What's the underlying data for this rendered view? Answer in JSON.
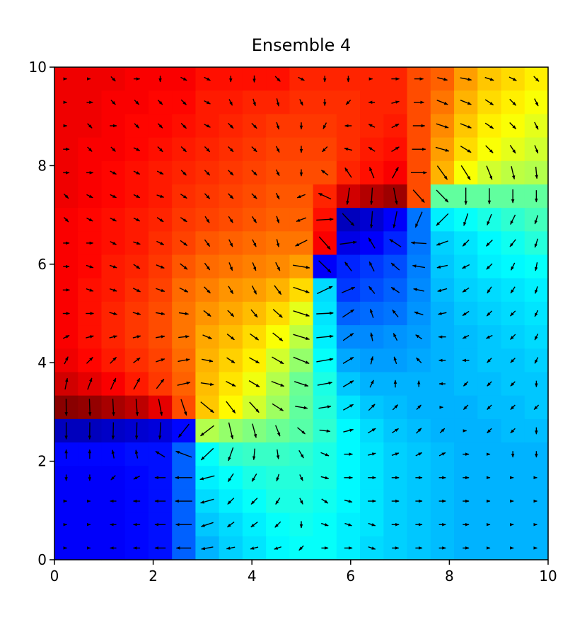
{
  "chart_data": {
    "type": "heatmap",
    "title": "Ensemble 4",
    "colormap": "jet",
    "quiver": true,
    "xlim": [
      0,
      10
    ],
    "ylim": [
      0,
      10
    ],
    "xticks": [
      0,
      2,
      4,
      6,
      8,
      10
    ],
    "yticks": [
      0,
      2,
      4,
      6,
      8,
      10
    ],
    "values": [
      [
        0.89,
        0.89,
        0.89,
        0.88,
        0.88,
        0.88,
        0.86,
        0.86,
        0.86,
        0.86,
        0.84,
        0.84,
        0.84,
        0.84,
        0.84,
        0.8,
        0.78,
        0.72,
        0.68,
        0.66,
        0.64
      ],
      [
        0.89,
        0.89,
        0.88,
        0.88,
        0.87,
        0.87,
        0.85,
        0.85,
        0.84,
        0.84,
        0.83,
        0.83,
        0.83,
        0.84,
        0.84,
        0.8,
        0.76,
        0.7,
        0.66,
        0.64,
        0.62
      ],
      [
        0.89,
        0.89,
        0.88,
        0.87,
        0.87,
        0.86,
        0.85,
        0.84,
        0.83,
        0.82,
        0.82,
        0.82,
        0.83,
        0.84,
        0.85,
        0.8,
        0.74,
        0.68,
        0.64,
        0.62,
        0.6
      ],
      [
        0.89,
        0.88,
        0.88,
        0.87,
        0.86,
        0.85,
        0.84,
        0.83,
        0.82,
        0.81,
        0.81,
        0.81,
        0.83,
        0.85,
        0.86,
        0.8,
        0.72,
        0.66,
        0.62,
        0.6,
        0.58
      ],
      [
        0.89,
        0.88,
        0.87,
        0.86,
        0.85,
        0.84,
        0.83,
        0.82,
        0.81,
        0.8,
        0.8,
        0.8,
        0.84,
        0.86,
        0.88,
        0.8,
        0.7,
        0.62,
        0.58,
        0.56,
        0.55
      ],
      [
        0.89,
        0.88,
        0.87,
        0.86,
        0.85,
        0.83,
        0.82,
        0.81,
        0.8,
        0.79,
        0.79,
        0.84,
        0.92,
        0.95,
        0.97,
        0.8,
        0.47,
        0.47,
        0.47,
        0.47,
        0.47
      ],
      [
        0.88,
        0.87,
        0.86,
        0.85,
        0.84,
        0.82,
        0.81,
        0.8,
        0.79,
        0.78,
        0.78,
        0.86,
        0.06,
        0.08,
        0.12,
        0.24,
        0.36,
        0.38,
        0.4,
        0.42,
        0.44
      ],
      [
        0.88,
        0.87,
        0.86,
        0.85,
        0.83,
        0.81,
        0.79,
        0.78,
        0.77,
        0.76,
        0.76,
        0.88,
        0.1,
        0.12,
        0.16,
        0.24,
        0.33,
        0.35,
        0.37,
        0.39,
        0.41
      ],
      [
        0.88,
        0.87,
        0.85,
        0.84,
        0.82,
        0.79,
        0.77,
        0.76,
        0.75,
        0.74,
        0.72,
        0.12,
        0.16,
        0.18,
        0.2,
        0.25,
        0.32,
        0.34,
        0.36,
        0.37,
        0.38
      ],
      [
        0.88,
        0.86,
        0.85,
        0.83,
        0.81,
        0.77,
        0.75,
        0.73,
        0.72,
        0.7,
        0.66,
        0.34,
        0.18,
        0.2,
        0.22,
        0.26,
        0.31,
        0.33,
        0.34,
        0.35,
        0.36
      ],
      [
        0.88,
        0.86,
        0.84,
        0.82,
        0.8,
        0.76,
        0.73,
        0.71,
        0.69,
        0.66,
        0.6,
        0.35,
        0.22,
        0.23,
        0.24,
        0.27,
        0.3,
        0.32,
        0.33,
        0.34,
        0.35
      ],
      [
        0.88,
        0.86,
        0.84,
        0.82,
        0.8,
        0.76,
        0.71,
        0.69,
        0.66,
        0.62,
        0.56,
        0.36,
        0.26,
        0.26,
        0.27,
        0.28,
        0.3,
        0.31,
        0.32,
        0.33,
        0.34
      ],
      [
        0.89,
        0.87,
        0.85,
        0.83,
        0.81,
        0.77,
        0.7,
        0.67,
        0.64,
        0.58,
        0.52,
        0.38,
        0.29,
        0.28,
        0.28,
        0.29,
        0.3,
        0.31,
        0.32,
        0.32,
        0.33
      ],
      [
        0.92,
        0.9,
        0.88,
        0.85,
        0.82,
        0.78,
        0.69,
        0.65,
        0.61,
        0.55,
        0.48,
        0.4,
        0.32,
        0.3,
        0.3,
        0.3,
        0.3,
        0.31,
        0.31,
        0.32,
        0.32
      ],
      [
        0.99,
        0.98,
        0.96,
        0.94,
        0.9,
        0.8,
        0.68,
        0.63,
        0.58,
        0.53,
        0.47,
        0.41,
        0.35,
        0.32,
        0.31,
        0.3,
        0.3,
        0.3,
        0.31,
        0.31,
        0.32
      ],
      [
        0.06,
        0.06,
        0.07,
        0.08,
        0.09,
        0.13,
        0.55,
        0.52,
        0.5,
        0.48,
        0.46,
        0.42,
        0.37,
        0.34,
        0.32,
        0.31,
        0.3,
        0.3,
        0.3,
        0.31,
        0.31
      ],
      [
        0.13,
        0.13,
        0.13,
        0.14,
        0.14,
        0.22,
        0.38,
        0.42,
        0.43,
        0.43,
        0.42,
        0.4,
        0.37,
        0.35,
        0.33,
        0.32,
        0.31,
        0.3,
        0.3,
        0.3,
        0.3
      ],
      [
        0.12,
        0.12,
        0.12,
        0.13,
        0.14,
        0.22,
        0.36,
        0.38,
        0.4,
        0.41,
        0.41,
        0.4,
        0.37,
        0.35,
        0.33,
        0.32,
        0.31,
        0.3,
        0.3,
        0.3,
        0.3
      ],
      [
        0.12,
        0.12,
        0.12,
        0.13,
        0.14,
        0.22,
        0.34,
        0.36,
        0.38,
        0.4,
        0.4,
        0.39,
        0.37,
        0.35,
        0.33,
        0.32,
        0.31,
        0.3,
        0.3,
        0.3,
        0.3
      ],
      [
        0.12,
        0.12,
        0.12,
        0.13,
        0.14,
        0.22,
        0.32,
        0.34,
        0.36,
        0.38,
        0.39,
        0.38,
        0.36,
        0.35,
        0.33,
        0.32,
        0.31,
        0.3,
        0.3,
        0.3,
        0.3
      ],
      [
        0.12,
        0.12,
        0.12,
        0.13,
        0.14,
        0.22,
        0.3,
        0.33,
        0.35,
        0.37,
        0.38,
        0.38,
        0.36,
        0.34,
        0.33,
        0.32,
        0.31,
        0.3,
        0.3,
        0.3,
        0.3
      ]
    ]
  }
}
